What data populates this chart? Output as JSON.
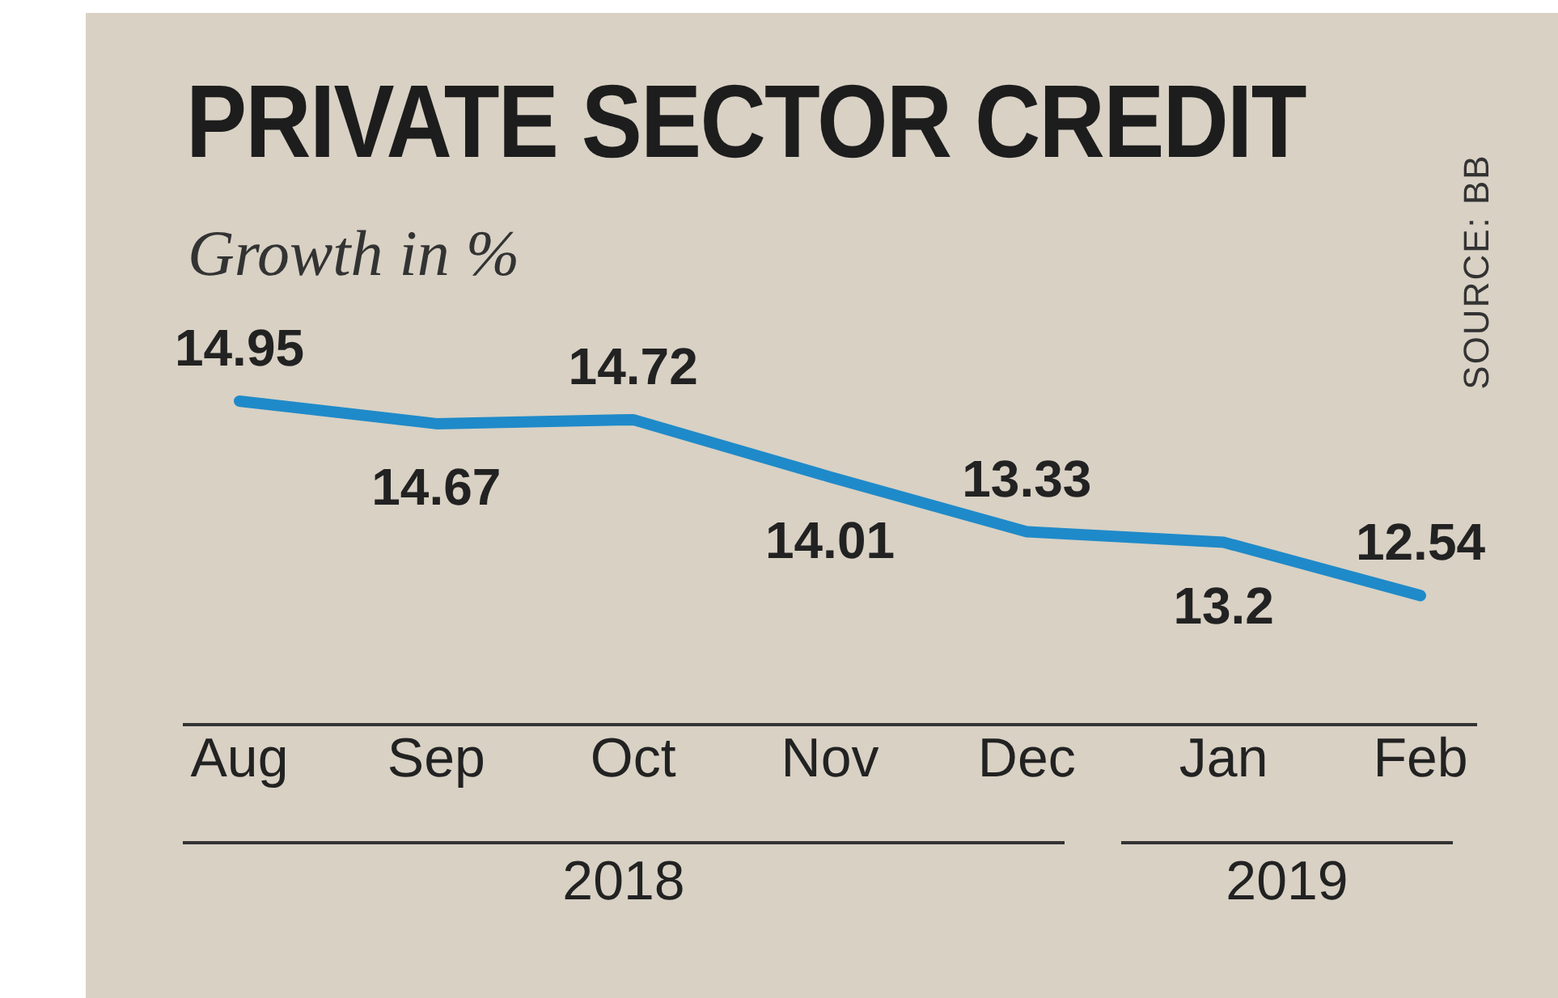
{
  "chart_data": {
    "type": "line",
    "title": "PRIVATE SECTOR CREDIT",
    "subtitle": "Growth in %",
    "categories": [
      "Aug",
      "Sep",
      "Oct",
      "Nov",
      "Dec",
      "Jan",
      "Feb"
    ],
    "series": [
      {
        "color": "#1f8ac9",
        "values": [
          14.95,
          14.67,
          14.72,
          14.01,
          13.33,
          13.2,
          12.54
        ]
      }
    ],
    "data_labels": true,
    "grid": false,
    "marker": "none",
    "line_style": "solid",
    "tick_labels": "x",
    "annotations": [
      "SOURCE: BB",
      "2018",
      "2019"
    ]
  }
}
